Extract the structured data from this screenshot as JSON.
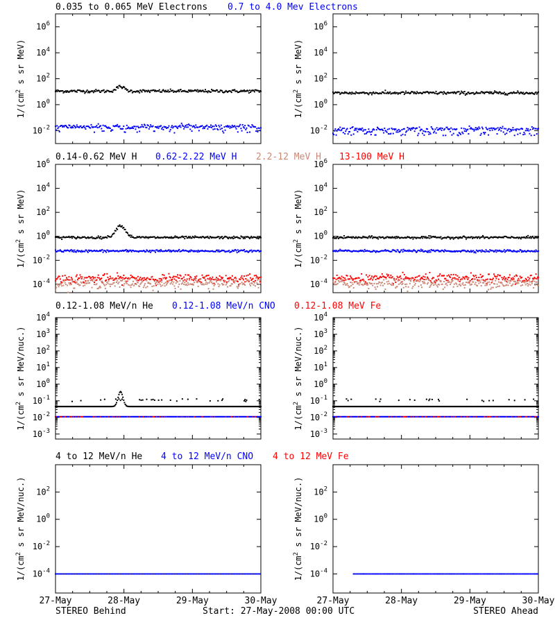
{
  "footer": {
    "left": "STEREO Behind",
    "center": "Start: 27-May-2008 00:00 UTC",
    "right": "STEREO Ahead"
  },
  "chart_data": [
    {
      "type": "scatter",
      "log_y": true,
      "ylabel_base": "1/(cm",
      "ylabel_sup": "2",
      "ylabel_rest": " s sr MeV)",
      "legend": [
        {
          "text": "0.035 to 0.065 MeV Electrons",
          "color": "#000000"
        },
        {
          "text": "0.7 to 4.0 Mev Electrons",
          "color": "#0000ff"
        }
      ],
      "yticks": [
        {
          "base": "10",
          "exp": "-2",
          "v": 0.01
        },
        {
          "base": "10",
          "exp": "0",
          "v": 1
        },
        {
          "base": "10",
          "exp": "2",
          "v": 100
        },
        {
          "base": "10",
          "exp": "4",
          "v": 10000
        },
        {
          "base": "10",
          "exp": "6",
          "v": 1000000
        }
      ],
      "ylim": [
        0.001,
        10000000
      ],
      "xlim": [
        0,
        3
      ],
      "panels": [
        {
          "name": "STEREO Behind",
          "series": [
            {
              "color": "#000000",
              "level": 11,
              "spread": 0.06,
              "hump": {
                "x": 0.95,
                "w": 0.08,
                "amp": 0.35
              }
            },
            {
              "color": "#0000ff",
              "level": 0.02,
              "spread": 0.08,
              "scatter_down": 0.15
            }
          ]
        },
        {
          "name": "STEREO Ahead",
          "series": [
            {
              "color": "#000000",
              "level": 8,
              "spread": 0.06
            },
            {
              "color": "#0000ff",
              "level": 0.013,
              "spread": 0.09,
              "scatter_down": 0.25
            }
          ]
        }
      ]
    },
    {
      "type": "scatter",
      "log_y": true,
      "ylabel_base": "1/(cm",
      "ylabel_sup": "2",
      "ylabel_rest": " s sr MeV)",
      "legend": [
        {
          "text": "0.14-0.62 MeV H",
          "color": "#000000"
        },
        {
          "text": "0.62-2.22 MeV H",
          "color": "#0000ff"
        },
        {
          "text": "2.2-12 MeV H",
          "color": "#cc8877"
        },
        {
          "text": "13-100 MeV H",
          "color": "#ff0000"
        }
      ],
      "yticks": [
        {
          "base": "10",
          "exp": "-4",
          "v": 0.0001
        },
        {
          "base": "10",
          "exp": "-2",
          "v": 0.01
        },
        {
          "base": "10",
          "exp": "0",
          "v": 1
        },
        {
          "base": "10",
          "exp": "2",
          "v": 100
        },
        {
          "base": "10",
          "exp": "4",
          "v": 10000
        },
        {
          "base": "10",
          "exp": "6",
          "v": 1000000
        }
      ],
      "ylim": [
        2e-05,
        1000000
      ],
      "xlim": [
        0,
        3
      ],
      "panels": [
        {
          "name": "STEREO Behind",
          "series": [
            {
              "color": "#000000",
              "level": 0.8,
              "spread": 0.05,
              "hump": {
                "x": 0.95,
                "w": 0.1,
                "amp": 1.0
              }
            },
            {
              "color": "#0000ff",
              "level": 0.06,
              "spread": 0.05
            },
            {
              "color": "#ff0000",
              "level": 0.0003,
              "spread": 0.18
            },
            {
              "color": "#cc8877",
              "level": 0.00012,
              "spread": 0.2
            }
          ]
        },
        {
          "name": "STEREO Ahead",
          "series": [
            {
              "color": "#000000",
              "level": 0.8,
              "spread": 0.05
            },
            {
              "color": "#0000ff",
              "level": 0.06,
              "spread": 0.05
            },
            {
              "color": "#ff0000",
              "level": 0.0003,
              "spread": 0.18
            },
            {
              "color": "#cc8877",
              "level": 0.00012,
              "spread": 0.2
            }
          ]
        }
      ]
    },
    {
      "type": "scatter",
      "log_y": true,
      "ylabel_base": "1/(cm",
      "ylabel_sup": "2",
      "ylabel_rest": " s sr MeV/nuc.)",
      "legend": [
        {
          "text": "0.12-1.08 MeV/n He",
          "color": "#000000"
        },
        {
          "text": "0.12-1.08 MeV/n CNO",
          "color": "#0000ff"
        },
        {
          "text": "0.12-1.08 MeV Fe",
          "color": "#ff0000"
        }
      ],
      "yticks": [
        {
          "base": "10",
          "exp": "-3",
          "v": 0.001
        },
        {
          "base": "10",
          "exp": "-2",
          "v": 0.01
        },
        {
          "base": "10",
          "exp": "-1",
          "v": 0.1
        },
        {
          "base": "10",
          "exp": "0",
          "v": 1
        },
        {
          "base": "10",
          "exp": "1",
          "v": 10
        },
        {
          "base": "10",
          "exp": "2",
          "v": 100
        },
        {
          "base": "10",
          "exp": "3",
          "v": 1000
        },
        {
          "base": "10",
          "exp": "4",
          "v": 10000
        }
      ],
      "ylim": [
        0.0005,
        10000
      ],
      "xlim": [
        0,
        3
      ],
      "panels": [
        {
          "name": "STEREO Behind",
          "series": [
            {
              "color": "#000000",
              "level": 0.045,
              "spread": 0.0,
              "sparse_upper": 0.1,
              "hump": {
                "x": 0.95,
                "w": 0.05,
                "amp": 0.9
              }
            },
            {
              "color": "#0000ff",
              "level": 0.011,
              "spread": 0.0,
              "mix_red": true
            }
          ]
        },
        {
          "name": "STEREO Ahead",
          "series": [
            {
              "color": "#000000",
              "level": 0.045,
              "spread": 0.0,
              "sparse_upper": 0.1
            },
            {
              "color": "#0000ff",
              "level": 0.011,
              "spread": 0.0,
              "mix_red": true
            }
          ]
        }
      ]
    },
    {
      "type": "scatter",
      "log_y": true,
      "ylabel_base": "1/(cm",
      "ylabel_sup": "2",
      "ylabel_rest": " s sr MeV/nuc.)",
      "legend": [
        {
          "text": "4 to 12 MeV/n He",
          "color": "#000000"
        },
        {
          "text": "4 to 12 MeV/n CNO",
          "color": "#0000ff"
        },
        {
          "text": "4 to 12 MeV Fe",
          "color": "#ff0000"
        }
      ],
      "yticks": [
        {
          "base": "10",
          "exp": "-4",
          "v": 0.0001
        },
        {
          "base": "10",
          "exp": "-2",
          "v": 0.01
        },
        {
          "base": "10",
          "exp": "0",
          "v": 1
        },
        {
          "base": "10",
          "exp": "2",
          "v": 100
        }
      ],
      "ylim": [
        4e-06,
        10000
      ],
      "xlim": [
        0,
        3
      ],
      "panels": [
        {
          "name": "STEREO Behind",
          "series": [
            {
              "color": "#000000",
              "level": 0.0001,
              "spread": 0.0,
              "flatline": true
            },
            {
              "color": "#0000ff",
              "level": 0.0001,
              "spread": 0.0,
              "dotted": true
            }
          ]
        },
        {
          "name": "STEREO Ahead",
          "series": [
            {
              "color": "#0000ff",
              "level": 0.0001,
              "spread": 0.0,
              "dotted": true,
              "start": 0.3
            }
          ]
        }
      ]
    }
  ],
  "x_axis": {
    "ticks": [
      {
        "label": "27-May",
        "v": 0
      },
      {
        "label": "28-May",
        "v": 1
      },
      {
        "label": "29-May",
        "v": 2
      },
      {
        "label": "30-May",
        "v": 3
      }
    ]
  }
}
